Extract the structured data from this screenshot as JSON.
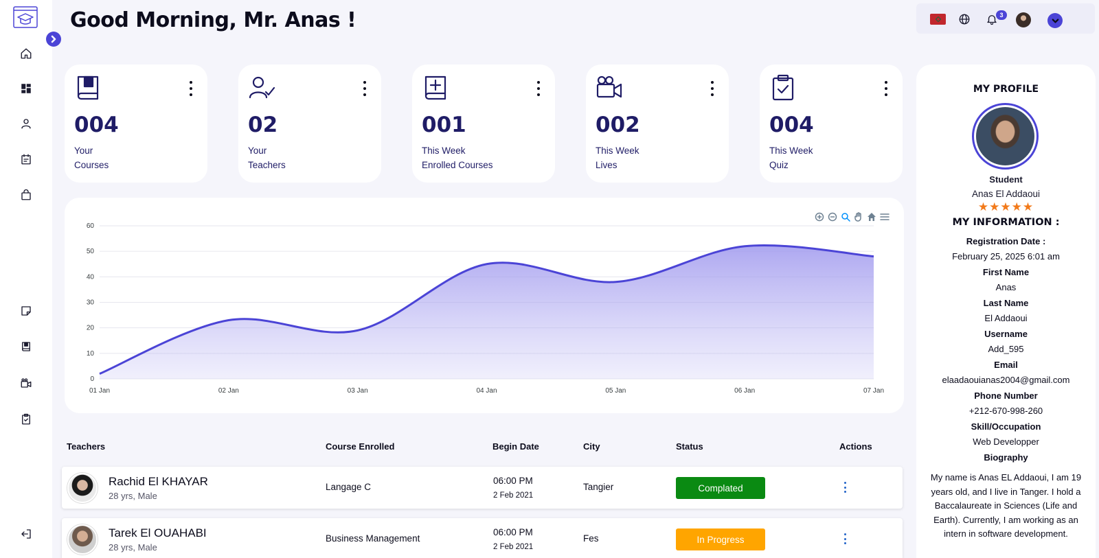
{
  "greeting": "Good Morning, Mr. Anas !",
  "colors": {
    "accent": "#4b44d6",
    "card_text": "#1f1c66",
    "completed": "#0a8a12",
    "in_progress": "#ffa500",
    "rating": "#f27a1a"
  },
  "sidebar": {
    "logo_icon": "graduation-cap-logo",
    "items": [
      {
        "icon": "home-icon"
      },
      {
        "icon": "dashboard-icon"
      },
      {
        "icon": "user-icon"
      },
      {
        "icon": "calendar-icon"
      },
      {
        "icon": "shopping-bag-icon"
      },
      {
        "icon": "note-icon"
      },
      {
        "icon": "book-icon"
      },
      {
        "icon": "video-camera-icon"
      },
      {
        "icon": "clipboard-check-icon"
      },
      {
        "icon": "logout-icon"
      }
    ]
  },
  "topbar": {
    "language_flag": "morocco-flag",
    "notification_count": "3"
  },
  "stats": [
    {
      "icon": "book-icon",
      "value": "004",
      "line1": "Your",
      "line2": "Courses"
    },
    {
      "icon": "user-check-icon",
      "value": "02",
      "line1": "Your",
      "line2": "Teachers"
    },
    {
      "icon": "book-plus-icon",
      "value": "001",
      "line1": "This Week",
      "line2": "Enrolled Courses"
    },
    {
      "icon": "video-camera-icon",
      "value": "002",
      "line1": "This Week",
      "line2": "Lives"
    },
    {
      "icon": "clipboard-check-icon",
      "value": "004",
      "line1": "This Week",
      "line2": "Quiz"
    }
  ],
  "chart_data": {
    "type": "area",
    "x": [
      "01 Jan",
      "02 Jan",
      "03 Jan",
      "04 Jan",
      "05 Jan",
      "06 Jan",
      "07 Jan"
    ],
    "series": [
      {
        "values": [
          2,
          23,
          19,
          45,
          38,
          52,
          48
        ]
      }
    ],
    "ylim": [
      0,
      60
    ],
    "yticks": [
      "0",
      "10",
      "20",
      "30",
      "40",
      "50",
      "60"
    ],
    "grid": true,
    "color": "#4b44d6",
    "toolbar": [
      "zoom-in-icon",
      "zoom-out-icon",
      "zoom-icon",
      "pan-icon",
      "reset-home-icon",
      "menu-icon"
    ]
  },
  "table": {
    "headers": {
      "teachers": "Teachers",
      "course": "Course Enrolled",
      "begin": "Begin Date",
      "city": "City",
      "status": "Status",
      "actions": "Actions"
    },
    "rows": [
      {
        "name": "Rachid El KHAYAR",
        "sub": "28 yrs, Male",
        "course": "Langage C",
        "time": "06:00 PM",
        "date": "2 Feb 2021",
        "city": "Tangier",
        "status": "Complated",
        "status_color": "#0a8a12"
      },
      {
        "name": "Tarek El OUAHABI",
        "sub": "28 yrs, Male",
        "course": "Business Management",
        "time": "06:00 PM",
        "date": "2 Feb 2021",
        "city": "Fes",
        "status": "In Progress",
        "status_color": "#ffa500"
      }
    ]
  },
  "profile": {
    "title": "MY PROFILE",
    "role": "Student",
    "name": "Anas El Addaoui",
    "rating": 5,
    "stars": "★★★★★",
    "info_title": "MY INFORMATION :",
    "fields": [
      {
        "label": "Registration Date :",
        "value": "February 25, 2025 6:01 am"
      },
      {
        "label": "First Name",
        "value": "Anas"
      },
      {
        "label": "Last Name",
        "value": "El Addaoui"
      },
      {
        "label": "Username",
        "value": "Add_595"
      },
      {
        "label": "Email",
        "value": "elaadaouianas2004@gmail.com"
      },
      {
        "label": "Phone Number",
        "value": "+212-670-998-260"
      },
      {
        "label": "Skill/Occupation",
        "value": "Web Developper"
      }
    ],
    "bio_label": "Biography",
    "bio": "My name is Anas EL Addaoui, I am 19 years old, and I live in Tanger. I hold a Baccalaureate in Sciences (Life and Earth). Currently, I am working as an intern in software development."
  }
}
